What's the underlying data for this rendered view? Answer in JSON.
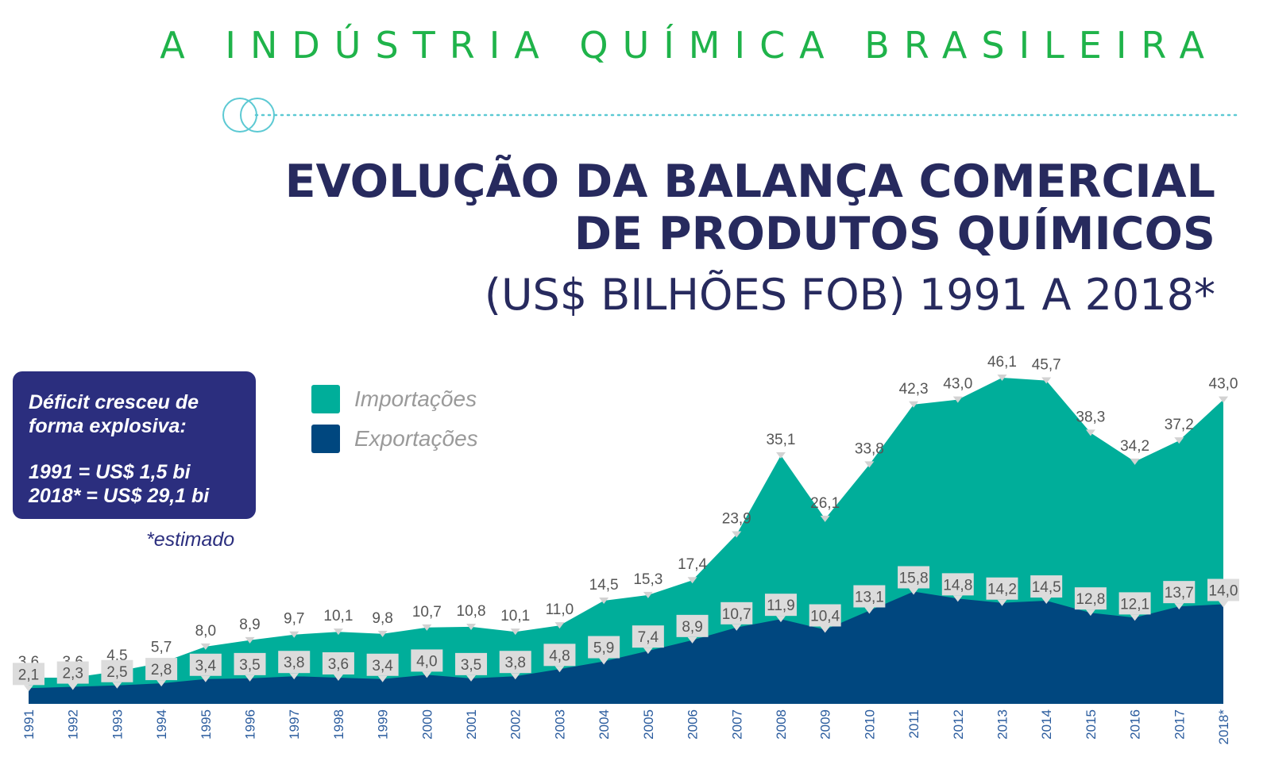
{
  "header": {
    "supertitle": "A INDÚSTRIA QUÍMICA BRASILEIRA",
    "title_line1": "EVOLUÇÃO DA BALANÇA COMERCIAL",
    "title_line2": "DE PRODUTOS QUÍMICOS",
    "subtitle": "(US$ BILHÕES FOB) 1991 A 2018*"
  },
  "callout": {
    "headline": "Déficit cresceu de\nforma explosiva:",
    "line1": "1991 = US$ 1,5 bi",
    "line2": "2018* = US$ 29,1 bi",
    "footnote": "*estimado"
  },
  "colors": {
    "imports": "#00ae9a",
    "exports": "#00477f",
    "supertitle": "#1fb34a",
    "title": "#272a5e",
    "callout_bg": "#2b2e7e",
    "divider": "#5cc9d3"
  },
  "chart_data": {
    "type": "area",
    "x": [
      "1991",
      "1992",
      "1993",
      "1994",
      "1995",
      "1996",
      "1997",
      "1998",
      "1999",
      "2000",
      "2001",
      "2002",
      "2003",
      "2004",
      "2005",
      "2006",
      "2007",
      "2008",
      "2009",
      "2010",
      "2011",
      "2012",
      "2013",
      "2014",
      "2015",
      "2016",
      "2017",
      "2018*"
    ],
    "series": [
      {
        "name": "Importações",
        "values": [
          3.6,
          3.6,
          4.5,
          5.7,
          8.0,
          8.9,
          9.7,
          10.1,
          9.8,
          10.7,
          10.8,
          10.1,
          11.0,
          14.5,
          15.3,
          17.4,
          23.9,
          35.1,
          26.1,
          33.8,
          42.3,
          43.0,
          46.1,
          45.7,
          38.3,
          34.2,
          37.2,
          43.0
        ],
        "labels": [
          "3,6",
          "3,6",
          "4,5",
          "5,7",
          "8,0",
          "8,9",
          "9,7",
          "10,1",
          "9,8",
          "10,7",
          "10,8",
          "10,1",
          "11,0",
          "14,5",
          "15,3",
          "17,4",
          "23,9",
          "35,1",
          "26,1",
          "33,8",
          "42,3",
          "43,0",
          "46,1",
          "45,7",
          "38,3",
          "34,2",
          "37,2",
          "43,0"
        ]
      },
      {
        "name": "Exportações",
        "values": [
          2.1,
          2.3,
          2.5,
          2.8,
          3.4,
          3.5,
          3.8,
          3.6,
          3.4,
          4.0,
          3.5,
          3.8,
          4.8,
          5.9,
          7.4,
          8.9,
          10.7,
          11.9,
          10.4,
          13.1,
          15.8,
          14.8,
          14.2,
          14.5,
          12.8,
          12.1,
          13.7,
          14.0
        ],
        "labels": [
          "2,1",
          "2,3",
          "2,5",
          "2,8",
          "3,4",
          "3,5",
          "3,8",
          "3,6",
          "3,4",
          "4,0",
          "3,5",
          "3,8",
          "4,8",
          "5,9",
          "7,4",
          "8,9",
          "10,7",
          "11,9",
          "10,4",
          "13,1",
          "15,8",
          "14,8",
          "14,2",
          "14,5",
          "12,8",
          "12,1",
          "13,7",
          "14,0"
        ]
      }
    ],
    "ylim": [
      0,
      46.1
    ]
  }
}
